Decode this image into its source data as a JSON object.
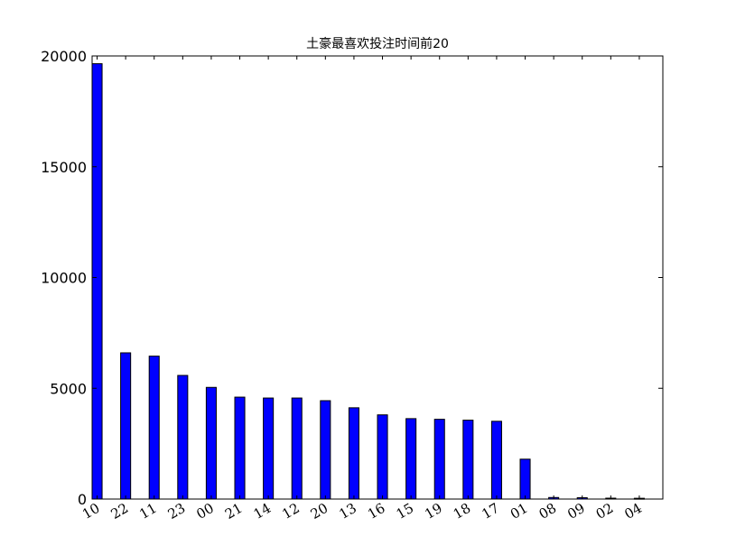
{
  "chart_data": {
    "type": "bar",
    "title": "土豪最喜欢投注时间前20",
    "xlabel": "",
    "ylabel": "",
    "categories": [
      "10",
      "22",
      "11",
      "23",
      "00",
      "21",
      "14",
      "12",
      "20",
      "13",
      "16",
      "15",
      "19",
      "18",
      "17",
      "01",
      "08",
      "09",
      "02",
      "04"
    ],
    "values": [
      19650,
      6600,
      6450,
      5580,
      5040,
      4600,
      4560,
      4560,
      4440,
      4120,
      3800,
      3630,
      3600,
      3560,
      3510,
      1800,
      70,
      60,
      40,
      35
    ],
    "ylim": [
      0,
      20000
    ],
    "yticks": [
      0,
      5000,
      10000,
      15000,
      20000
    ],
    "grid": false,
    "colors": {
      "bar": "#0000ff",
      "edge": "#000000",
      "axis": "#000000"
    }
  }
}
